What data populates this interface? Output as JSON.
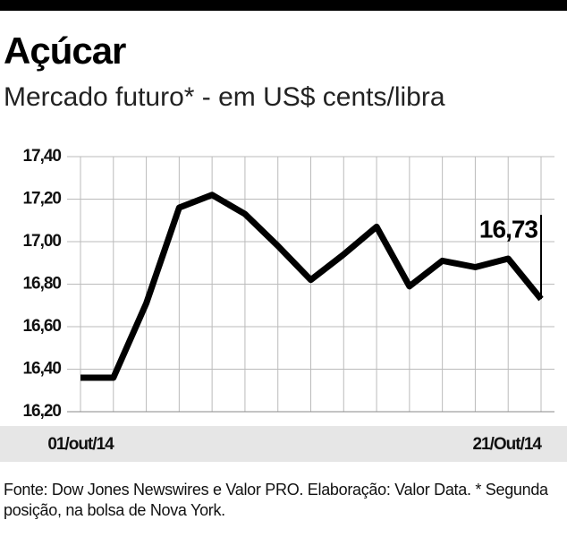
{
  "chart_data": {
    "type": "line",
    "title": "Açúcar",
    "subtitle": "Mercado futuro* - em US$ cents/libra",
    "categories": [
      "01/out/14",
      null,
      null,
      null,
      null,
      null,
      null,
      null,
      null,
      null,
      null,
      null,
      null,
      null,
      "21/Out/14"
    ],
    "series": [
      {
        "name": "Açúcar",
        "color": "#000000",
        "values": [
          16.36,
          16.36,
          16.71,
          17.16,
          17.22,
          17.13,
          16.98,
          16.82,
          16.94,
          17.07,
          16.79,
          16.91,
          16.88,
          16.92,
          16.73
        ],
        "value_labels": [
          null,
          null,
          null,
          null,
          null,
          null,
          null,
          null,
          null,
          null,
          null,
          null,
          null,
          null,
          "16,73"
        ]
      }
    ],
    "ylim": [
      16.2,
      17.4
    ],
    "yticks": [
      {
        "value": 16.2,
        "label": "16,20"
      },
      {
        "value": 16.4,
        "label": "16,40"
      },
      {
        "value": 16.6,
        "label": "16,60"
      },
      {
        "value": 16.8,
        "label": "16,80"
      },
      {
        "value": 17.0,
        "label": "17,00"
      },
      {
        "value": 17.2,
        "label": "17,20"
      },
      {
        "value": 17.4,
        "label": "17,40"
      }
    ],
    "grid": true,
    "source": "Fonte: Dow Jones Newswires e Valor PRO. Elaboração: Valor Data. * Segunda posição, na bolsa de Nova York."
  }
}
